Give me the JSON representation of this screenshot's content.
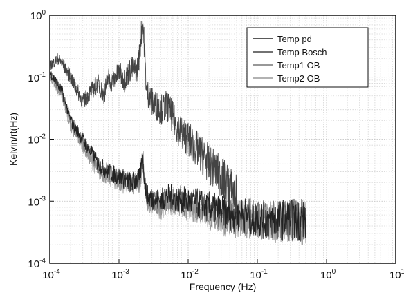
{
  "chart_data": {
    "type": "line",
    "title": "",
    "xlabel": "Frequency (Hz)",
    "ylabel": "Kelvin/rt(Hz)",
    "x_scale": "log",
    "y_scale": "log",
    "xlim": [
      0.0001,
      10
    ],
    "ylim": [
      0.0001,
      1
    ],
    "grid": true,
    "legend_position": "top-right",
    "x_ticks": [
      {
        "base": "10",
        "exp": "-4"
      },
      {
        "base": "10",
        "exp": "-3"
      },
      {
        "base": "10",
        "exp": "-2"
      },
      {
        "base": "10",
        "exp": "-1"
      },
      {
        "base": "10",
        "exp": "0"
      },
      {
        "base": "10",
        "exp": "1"
      }
    ],
    "y_ticks": [
      {
        "base": "10",
        "exp": "-4"
      },
      {
        "base": "10",
        "exp": "-3"
      },
      {
        "base": "10",
        "exp": "-2"
      },
      {
        "base": "10",
        "exp": "-1"
      },
      {
        "base": "10",
        "exp": "0"
      }
    ],
    "series": [
      {
        "name": "Temp pd",
        "color": "#222222",
        "x": [
          0.0001,
          0.00015,
          0.0002,
          0.0003,
          0.0005,
          0.0007,
          0.001,
          0.0015,
          0.002,
          0.0022,
          0.0023,
          0.0025,
          0.003,
          0.004,
          0.005,
          0.007,
          0.01,
          0.015,
          0.02,
          0.03,
          0.05,
          0.07,
          0.1,
          0.2,
          0.3,
          0.5
        ],
        "y": [
          0.12,
          0.06,
          0.02,
          0.01,
          0.004,
          0.003,
          0.0025,
          0.002,
          0.0023,
          0.006,
          0.003,
          0.0012,
          0.0011,
          0.001,
          0.0012,
          0.0011,
          0.001,
          0.0009,
          0.0008,
          0.0007,
          0.0006,
          0.0006,
          0.0005,
          0.0005,
          0.0005,
          0.0005
        ]
      },
      {
        "name": "Temp Bosch",
        "color": "#444444",
        "x": [
          0.0001,
          0.00013,
          0.00015,
          0.0002,
          0.00025,
          0.0003,
          0.0004,
          0.0005,
          0.0006,
          0.0007,
          0.0008,
          0.001,
          0.0012,
          0.0015,
          0.0018,
          0.002,
          0.0021,
          0.0022,
          0.0023,
          0.0025,
          0.003,
          0.004,
          0.005,
          0.007,
          0.01,
          0.015,
          0.02,
          0.03,
          0.05
        ],
        "y": [
          0.15,
          0.2,
          0.17,
          0.1,
          0.06,
          0.04,
          0.06,
          0.08,
          0.05,
          0.1,
          0.08,
          0.12,
          0.09,
          0.14,
          0.12,
          0.25,
          0.5,
          0.85,
          0.4,
          0.06,
          0.04,
          0.03,
          0.035,
          0.015,
          0.01,
          0.006,
          0.004,
          0.0025,
          0.0012
        ]
      },
      {
        "name": "Temp1 OB",
        "color": "#777777",
        "x": [
          0.0001,
          0.00015,
          0.0002,
          0.0003,
          0.0005,
          0.0007,
          0.001,
          0.0015,
          0.002,
          0.0022,
          0.0023,
          0.0025,
          0.003,
          0.004,
          0.005,
          0.007,
          0.01,
          0.015,
          0.02,
          0.03,
          0.05,
          0.07,
          0.1,
          0.2,
          0.3,
          0.5
        ],
        "y": [
          0.12,
          0.055,
          0.018,
          0.009,
          0.0035,
          0.0028,
          0.0023,
          0.0019,
          0.0021,
          0.005,
          0.0025,
          0.0011,
          0.001,
          0.0009,
          0.0011,
          0.001,
          0.0009,
          0.0008,
          0.0007,
          0.0006,
          0.00055,
          0.0005,
          0.0005,
          0.0005,
          0.0005,
          0.0005
        ]
      },
      {
        "name": "Temp2 OB",
        "color": "#999999",
        "x": [
          0.0001,
          0.00015,
          0.0002,
          0.0003,
          0.0005,
          0.0007,
          0.001,
          0.0015,
          0.002,
          0.0022,
          0.0023,
          0.0025,
          0.003,
          0.004,
          0.005,
          0.007,
          0.01,
          0.015,
          0.02,
          0.03,
          0.05,
          0.07,
          0.1,
          0.2,
          0.3,
          0.5
        ],
        "y": [
          0.11,
          0.05,
          0.016,
          0.008,
          0.003,
          0.0025,
          0.002,
          0.0018,
          0.002,
          0.0045,
          0.0022,
          0.001,
          0.0009,
          0.0008,
          0.001,
          0.0009,
          0.0008,
          0.00075,
          0.0006,
          0.0005,
          0.0005,
          0.00045,
          0.00045,
          0.00045,
          0.00045,
          0.00045
        ]
      }
    ]
  }
}
